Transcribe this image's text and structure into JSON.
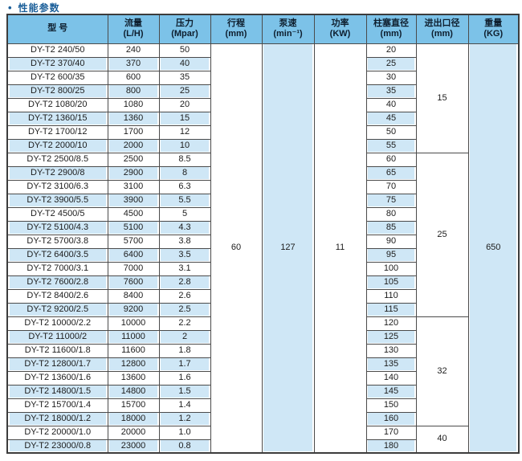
{
  "title": {
    "bullet": "•",
    "text": "性能参数"
  },
  "colors": {
    "header_bg": "#7cc2e8",
    "row_alt_bg": "#cfe7f6",
    "title_color": "#1a5e99",
    "border": "#4b4b4b"
  },
  "table": {
    "headers": [
      {
        "line1": "型 号",
        "line2": ""
      },
      {
        "line1": "流量",
        "line2": "(L/H)"
      },
      {
        "line1": "压力",
        "line2": "(Mpar)"
      },
      {
        "line1": "行程",
        "line2": "(mm)"
      },
      {
        "line1": "泵速",
        "line2": "(min⁻¹)"
      },
      {
        "line1": "功率",
        "line2": "(KW)"
      },
      {
        "line1": "柱塞直径",
        "line2": "(mm)"
      },
      {
        "line1": "进出口径",
        "line2": "(mm)"
      },
      {
        "line1": "重量",
        "line2": "(KG)"
      }
    ],
    "merged": {
      "stroke": "60",
      "pump_speed": "127",
      "power": "11",
      "weight": "650"
    },
    "inlet_groups": [
      {
        "value": "15",
        "span": 8
      },
      {
        "value": "25",
        "span": 12
      },
      {
        "value": "32",
        "span": 8
      },
      {
        "value": "40",
        "span": 2
      }
    ],
    "rows": [
      {
        "model": "DY-T2 240/50",
        "flow": "240",
        "pressure": "50",
        "plunger": "20"
      },
      {
        "model": "DY-T2 370/40",
        "flow": "370",
        "pressure": "40",
        "plunger": "25"
      },
      {
        "model": "DY-T2 600/35",
        "flow": "600",
        "pressure": "35",
        "plunger": "30"
      },
      {
        "model": "DY-T2 800/25",
        "flow": "800",
        "pressure": "25",
        "plunger": "35"
      },
      {
        "model": "DY-T2 1080/20",
        "flow": "1080",
        "pressure": "20",
        "plunger": "40"
      },
      {
        "model": "DY-T2 1360/15",
        "flow": "1360",
        "pressure": "15",
        "plunger": "45"
      },
      {
        "model": "DY-T2 1700/12",
        "flow": "1700",
        "pressure": "12",
        "plunger": "50"
      },
      {
        "model": "DY-T2 2000/10",
        "flow": "2000",
        "pressure": "10",
        "plunger": "55"
      },
      {
        "model": "DY-T2 2500/8.5",
        "flow": "2500",
        "pressure": "8.5",
        "plunger": "60"
      },
      {
        "model": "DY-T2 2900/8",
        "flow": "2900",
        "pressure": "8",
        "plunger": "65"
      },
      {
        "model": "DY-T2 3100/6.3",
        "flow": "3100",
        "pressure": "6.3",
        "plunger": "70"
      },
      {
        "model": "DY-T2 3900/5.5",
        "flow": "3900",
        "pressure": "5.5",
        "plunger": "75"
      },
      {
        "model": "DY-T2 4500/5",
        "flow": "4500",
        "pressure": "5",
        "plunger": "80"
      },
      {
        "model": "DY-T2 5100/4.3",
        "flow": "5100",
        "pressure": "4.3",
        "plunger": "85"
      },
      {
        "model": "DY-T2 5700/3.8",
        "flow": "5700",
        "pressure": "3.8",
        "plunger": "90"
      },
      {
        "model": "DY-T2 6400/3.5",
        "flow": "6400",
        "pressure": "3.5",
        "plunger": "95"
      },
      {
        "model": "DY-T2 7000/3.1",
        "flow": "7000",
        "pressure": "3.1",
        "plunger": "100"
      },
      {
        "model": "DY-T2 7600/2.8",
        "flow": "7600",
        "pressure": "2.8",
        "plunger": "105"
      },
      {
        "model": "DY-T2 8400/2.6",
        "flow": "8400",
        "pressure": "2.6",
        "plunger": "110"
      },
      {
        "model": "DY-T2 9200/2.5",
        "flow": "9200",
        "pressure": "2.5",
        "plunger": "115"
      },
      {
        "model": "DY-T2 10000/2.2",
        "flow": "10000",
        "pressure": "2.2",
        "plunger": "120"
      },
      {
        "model": "DY-T2 11000/2",
        "flow": "11000",
        "pressure": "2",
        "plunger": "125"
      },
      {
        "model": "DY-T2 11600/1.8",
        "flow": "11600",
        "pressure": "1.8",
        "plunger": "130"
      },
      {
        "model": "DY-T2 12800/1.7",
        "flow": "12800",
        "pressure": "1.7",
        "plunger": "135"
      },
      {
        "model": "DY-T2 13600/1.6",
        "flow": "13600",
        "pressure": "1.6",
        "plunger": "140"
      },
      {
        "model": "DY-T2 14800/1.5",
        "flow": "14800",
        "pressure": "1.5",
        "plunger": "145"
      },
      {
        "model": "DY-T2 15700/1.4",
        "flow": "15700",
        "pressure": "1.4",
        "plunger": "150"
      },
      {
        "model": "DY-T2 18000/1.2",
        "flow": "18000",
        "pressure": "1.2",
        "plunger": "160"
      },
      {
        "model": "DY-T2 20000/1.0",
        "flow": "20000",
        "pressure": "1.0",
        "plunger": "170"
      },
      {
        "model": "DY-T2 23000/0.8",
        "flow": "23000",
        "pressure": "0.8",
        "plunger": "180"
      }
    ]
  }
}
